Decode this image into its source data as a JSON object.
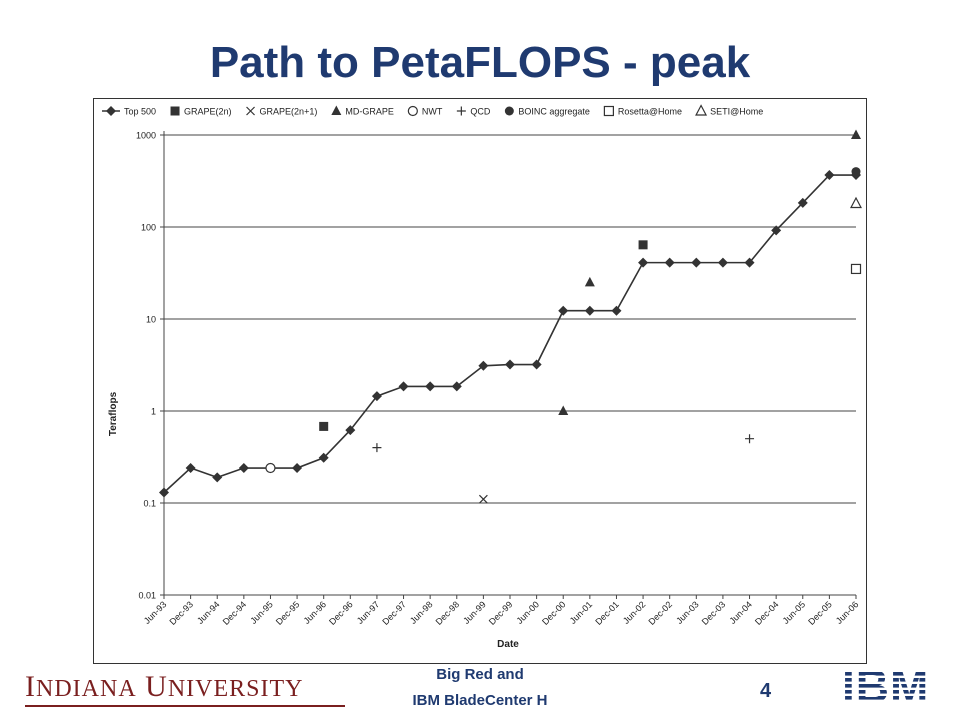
{
  "slide": {
    "title": "Path to PetaFLOPS - peak",
    "footer_line1": "Big Red and",
    "footer_line2": "IBM BladeCenter  H",
    "page_number": "4",
    "logo_left": "INDIANA UNIVERSITY",
    "logo_right": "IBM"
  },
  "chart_data": {
    "type": "line",
    "xlabel": "Date",
    "ylabel": "Teraflops",
    "yscale": "log",
    "ylim": [
      0.01,
      1000
    ],
    "ytick_labels": [
      "0.01",
      "0.1",
      "1",
      "10",
      "100",
      "1000"
    ],
    "grid": "horizontal",
    "legend_position": "top",
    "categories": [
      "Jun-93",
      "Dec-93",
      "Jun-94",
      "Dec-94",
      "Jun-95",
      "Dec-95",
      "Jun-96",
      "Dec-96",
      "Jun-97",
      "Dec-97",
      "Jun-98",
      "Dec-98",
      "Jun-99",
      "Dec-99",
      "Jun-00",
      "Dec-00",
      "Jun-01",
      "Dec-01",
      "Jun-02",
      "Dec-02",
      "Jun-03",
      "Dec-03",
      "Jun-04",
      "Dec-04",
      "Jun-05",
      "Dec-05",
      "Jun-06"
    ],
    "series": [
      {
        "name": "Top 500",
        "marker": "diamond-line",
        "points": [
          [
            "Jun-93",
            0.13
          ],
          [
            "Dec-93",
            0.24
          ],
          [
            "Jun-94",
            0.19
          ],
          [
            "Dec-94",
            0.24
          ],
          [
            "Jun-95",
            0.24
          ],
          [
            "Dec-95",
            0.24
          ],
          [
            "Jun-96",
            0.31
          ],
          [
            "Dec-96",
            0.62
          ],
          [
            "Jun-97",
            1.45
          ],
          [
            "Dec-97",
            1.85
          ],
          [
            "Jun-98",
            1.85
          ],
          [
            "Dec-98",
            1.85
          ],
          [
            "Jun-99",
            3.1
          ],
          [
            "Dec-99",
            3.2
          ],
          [
            "Jun-00",
            3.2
          ],
          [
            "Dec-00",
            12.3
          ],
          [
            "Jun-01",
            12.3
          ],
          [
            "Dec-01",
            12.3
          ],
          [
            "Jun-02",
            41
          ],
          [
            "Dec-02",
            41
          ],
          [
            "Jun-03",
            41
          ],
          [
            "Dec-03",
            41
          ],
          [
            "Jun-04",
            41
          ],
          [
            "Dec-04",
            92
          ],
          [
            "Jun-05",
            183
          ],
          [
            "Dec-05",
            367
          ],
          [
            "Jun-06",
            367
          ]
        ]
      },
      {
        "name": "GRAPE(2n)",
        "marker": "filled-square",
        "points": [
          [
            "Jun-96",
            0.68
          ],
          [
            "Jun-02",
            64
          ]
        ]
      },
      {
        "name": "GRAPE(2n+1)",
        "marker": "x",
        "points": [
          [
            "Jun-99",
            0.11
          ]
        ]
      },
      {
        "name": "MD-GRAPE",
        "marker": "filled-triangle",
        "points": [
          [
            "Dec-00",
            1.0
          ],
          [
            "Jun-01",
            25
          ],
          [
            "Jun-06",
            1000
          ]
        ]
      },
      {
        "name": "NWT",
        "marker": "open-circle",
        "points": [
          [
            "Jun-95",
            0.24
          ]
        ]
      },
      {
        "name": "QCD",
        "marker": "plus",
        "points": [
          [
            "Jun-97",
            0.4
          ],
          [
            "Jun-04",
            0.5
          ]
        ]
      },
      {
        "name": "BOINC aggregate",
        "marker": "filled-circle",
        "points": [
          [
            "Jun-06",
            400
          ]
        ]
      },
      {
        "name": "Rosetta@Home",
        "marker": "open-square",
        "points": [
          [
            "Jun-06",
            35
          ]
        ]
      },
      {
        "name": "SETI@Home",
        "marker": "open-triangle",
        "points": [
          [
            "Jun-06",
            180
          ]
        ]
      }
    ]
  },
  "colors": {
    "title": "#1f3a70",
    "series": "#333333",
    "university": "#7a1f1f",
    "ibm": "#1f3a70"
  }
}
